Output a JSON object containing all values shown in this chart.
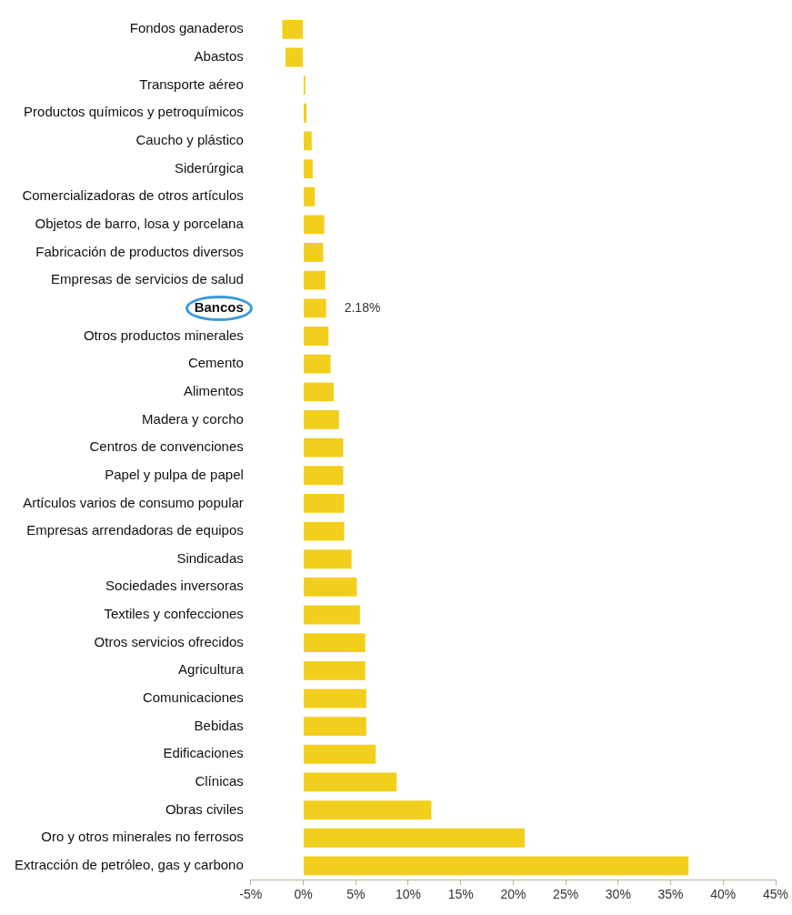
{
  "chart_data": {
    "type": "bar",
    "orientation": "horizontal",
    "categories": [
      "Fondos ganaderos",
      "Abastos",
      "Transporte aéreo",
      "Productos químicos y petroquímicos",
      "Caucho y plástico",
      "Siderúrgica",
      "Comercializadoras de otros artículos",
      "Objetos de barro, losa y porcelana",
      "Fabricación de productos diversos",
      "Empresas de servicios de salud",
      "Bancos",
      "Otros productos minerales",
      "Cemento",
      "Alimentos",
      "Madera y corcho",
      "Centros de convenciones",
      "Papel y pulpa de papel",
      "Artículos varios de consumo popular",
      "Empresas arrendadoras de equipos",
      "Sindicadas",
      "Sociedades inversoras",
      "Textiles y confecciones",
      "Otros servicios ofrecidos",
      "Agricultura",
      "Comunicaciones",
      "Bebidas",
      "Edificaciones",
      "Clínicas",
      "Obras civiles",
      "Oro y otros minerales no ferrosos",
      "Extracción de petróleo, gas y carbono"
    ],
    "values": [
      -2.0,
      -1.7,
      0.2,
      0.3,
      0.8,
      0.9,
      1.1,
      2.0,
      1.9,
      2.1,
      2.18,
      2.4,
      2.6,
      2.9,
      3.4,
      3.8,
      3.8,
      3.9,
      3.9,
      4.6,
      5.1,
      5.4,
      5.9,
      5.9,
      6.0,
      6.0,
      6.9,
      8.9,
      12.2,
      21.1,
      36.7
    ],
    "value_labels": [
      null,
      null,
      null,
      null,
      null,
      null,
      null,
      null,
      null,
      null,
      "2.18%",
      null,
      null,
      null,
      null,
      null,
      null,
      null,
      null,
      null,
      null,
      null,
      null,
      null,
      null,
      null,
      null,
      null,
      null,
      null,
      null
    ],
    "color": "#f2cf1d",
    "xlim": [
      -5,
      45
    ],
    "xticks": [
      {
        "value": -5,
        "label": "-5%"
      },
      {
        "value": 0,
        "label": "0%"
      },
      {
        "value": 5,
        "label": "5%"
      },
      {
        "value": 10,
        "label": "10%"
      },
      {
        "value": 15,
        "label": "15%"
      },
      {
        "value": 20,
        "label": "20%"
      },
      {
        "value": 25,
        "label": "25%"
      },
      {
        "value": 30,
        "label": "30%"
      },
      {
        "value": 35,
        "label": "35%"
      },
      {
        "value": 40,
        "label": "40%"
      },
      {
        "value": 45,
        "label": "45%"
      }
    ],
    "grid": false,
    "legend": false
  }
}
